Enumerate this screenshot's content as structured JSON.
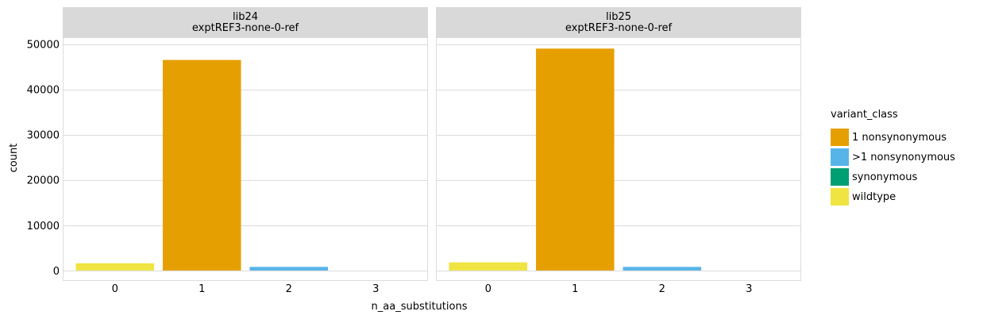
{
  "chart_data": {
    "type": "bar",
    "xlabel": "n_aa_substitutions",
    "ylabel": "count",
    "ylim": [
      -2300,
      51500
    ],
    "y_ticks": [
      0,
      10000,
      20000,
      30000,
      40000,
      50000
    ],
    "categories": [
      "0",
      "1",
      "2",
      "3"
    ],
    "grid": true,
    "legend": {
      "title": "variant_class",
      "position": "right",
      "items": [
        {
          "name": "1 nonsynonymous",
          "color": "#E69F00"
        },
        {
          "name": ">1 nonsynonymous",
          "color": "#56B4E9"
        },
        {
          "name": "synonymous",
          "color": "#009E73"
        },
        {
          "name": "wildtype",
          "color": "#F0E442"
        }
      ]
    },
    "panels": [
      {
        "strip": [
          "lib24",
          "exptREF3-none-0-ref"
        ],
        "bars": [
          {
            "x": "0",
            "value": 1600,
            "class": "wildtype"
          },
          {
            "x": "1",
            "value": 46500,
            "class": "1 nonsynonymous"
          },
          {
            "x": "2",
            "value": 800,
            "class": ">1 nonsynonymous"
          },
          {
            "x": "3",
            "value": 0,
            "class": "synonymous"
          }
        ]
      },
      {
        "strip": [
          "lib25",
          "exptREF3-none-0-ref"
        ],
        "bars": [
          {
            "x": "0",
            "value": 1800,
            "class": "wildtype"
          },
          {
            "x": "1",
            "value": 49000,
            "class": "1 nonsynonymous"
          },
          {
            "x": "2",
            "value": 800,
            "class": ">1 nonsynonymous"
          },
          {
            "x": "3",
            "value": 0,
            "class": "synonymous"
          }
        ]
      }
    ]
  }
}
